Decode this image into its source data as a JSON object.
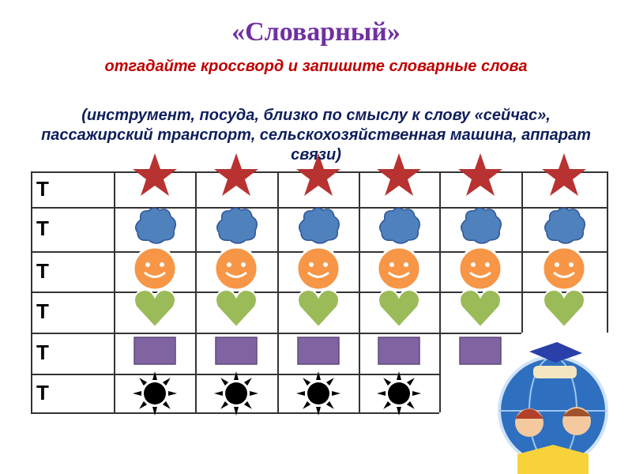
{
  "title": "«Словарный»",
  "instruction": "отгадайте кроссворд и запишите словарные слова",
  "hints": "(инструмент, посуда, близко по смыслу к слову «сейчас», пассажирский транспорт, сельскохозяйственная машина, аппарат связи)",
  "rows": [
    {
      "letter": "Т",
      "symbol": "star-icon",
      "count": 6
    },
    {
      "letter": "Т",
      "symbol": "cloud-icon",
      "count": 6
    },
    {
      "letter": "Т",
      "symbol": "smiley-icon",
      "count": 6
    },
    {
      "letter": "Т",
      "symbol": "heart-icon",
      "count": 6
    },
    {
      "letter": "Т",
      "symbol": "square-icon",
      "count": 5
    },
    {
      "letter": "Т",
      "symbol": "sun-icon",
      "count": 4
    }
  ],
  "colors": {
    "title": "#7030a0",
    "instruction": "#c00000",
    "hints": "#0f1f5c",
    "star": "#b83232",
    "cloud": "#4f81bd",
    "smiley": "#f79646",
    "heart": "#9bbb59",
    "square": "#8064a2",
    "sun": "#000000"
  }
}
